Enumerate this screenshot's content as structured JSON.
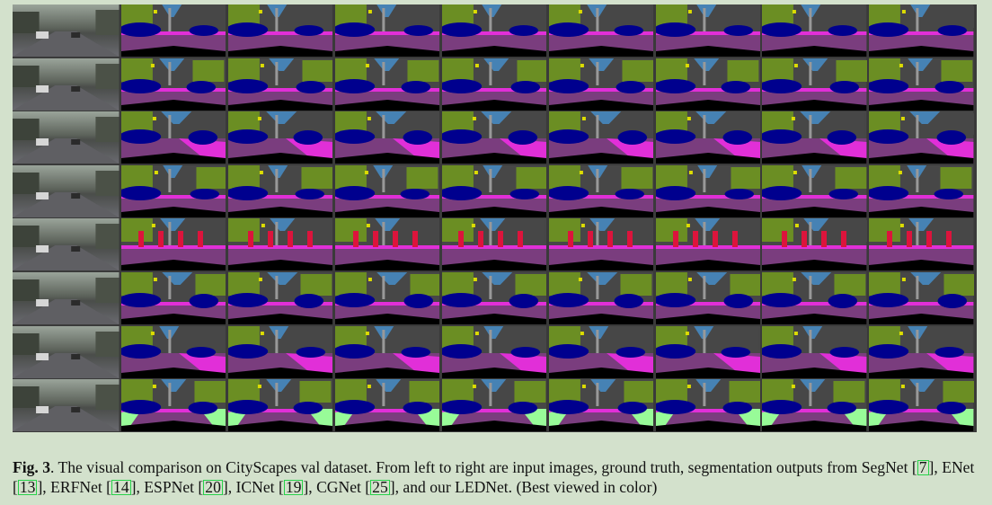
{
  "figure": {
    "label_prefix": "Fig. 3",
    "label_suffix": ".",
    "caption_start": " The visual comparison on CityScapes val dataset. From left to right are input images, ground truth, segmentation outputs from SegNet ",
    "methods": [
      {
        "name": "SegNet",
        "ref": "7"
      },
      {
        "name": "ENet",
        "ref": "13"
      },
      {
        "name": "ERFNet",
        "ref": "14"
      },
      {
        "name": "ESPNet",
        "ref": "20"
      },
      {
        "name": "ICNet",
        "ref": "19"
      },
      {
        "name": "CGNet",
        "ref": "25"
      }
    ],
    "caption_end": ", and our LEDNet. (Best viewed in color)",
    "rows": 8,
    "columns": 9
  },
  "colors": {
    "road": "#7a3d7e",
    "sidewalk": "#e12fd8",
    "building": "#474747",
    "vegetation": "#6b8e23",
    "sky": "#4682b4",
    "car": "#00008e",
    "person": "#dc143c",
    "terrain": "#98fb98",
    "sign": "#dcdc00",
    "pole": "#999999",
    "ego": "#000000"
  }
}
